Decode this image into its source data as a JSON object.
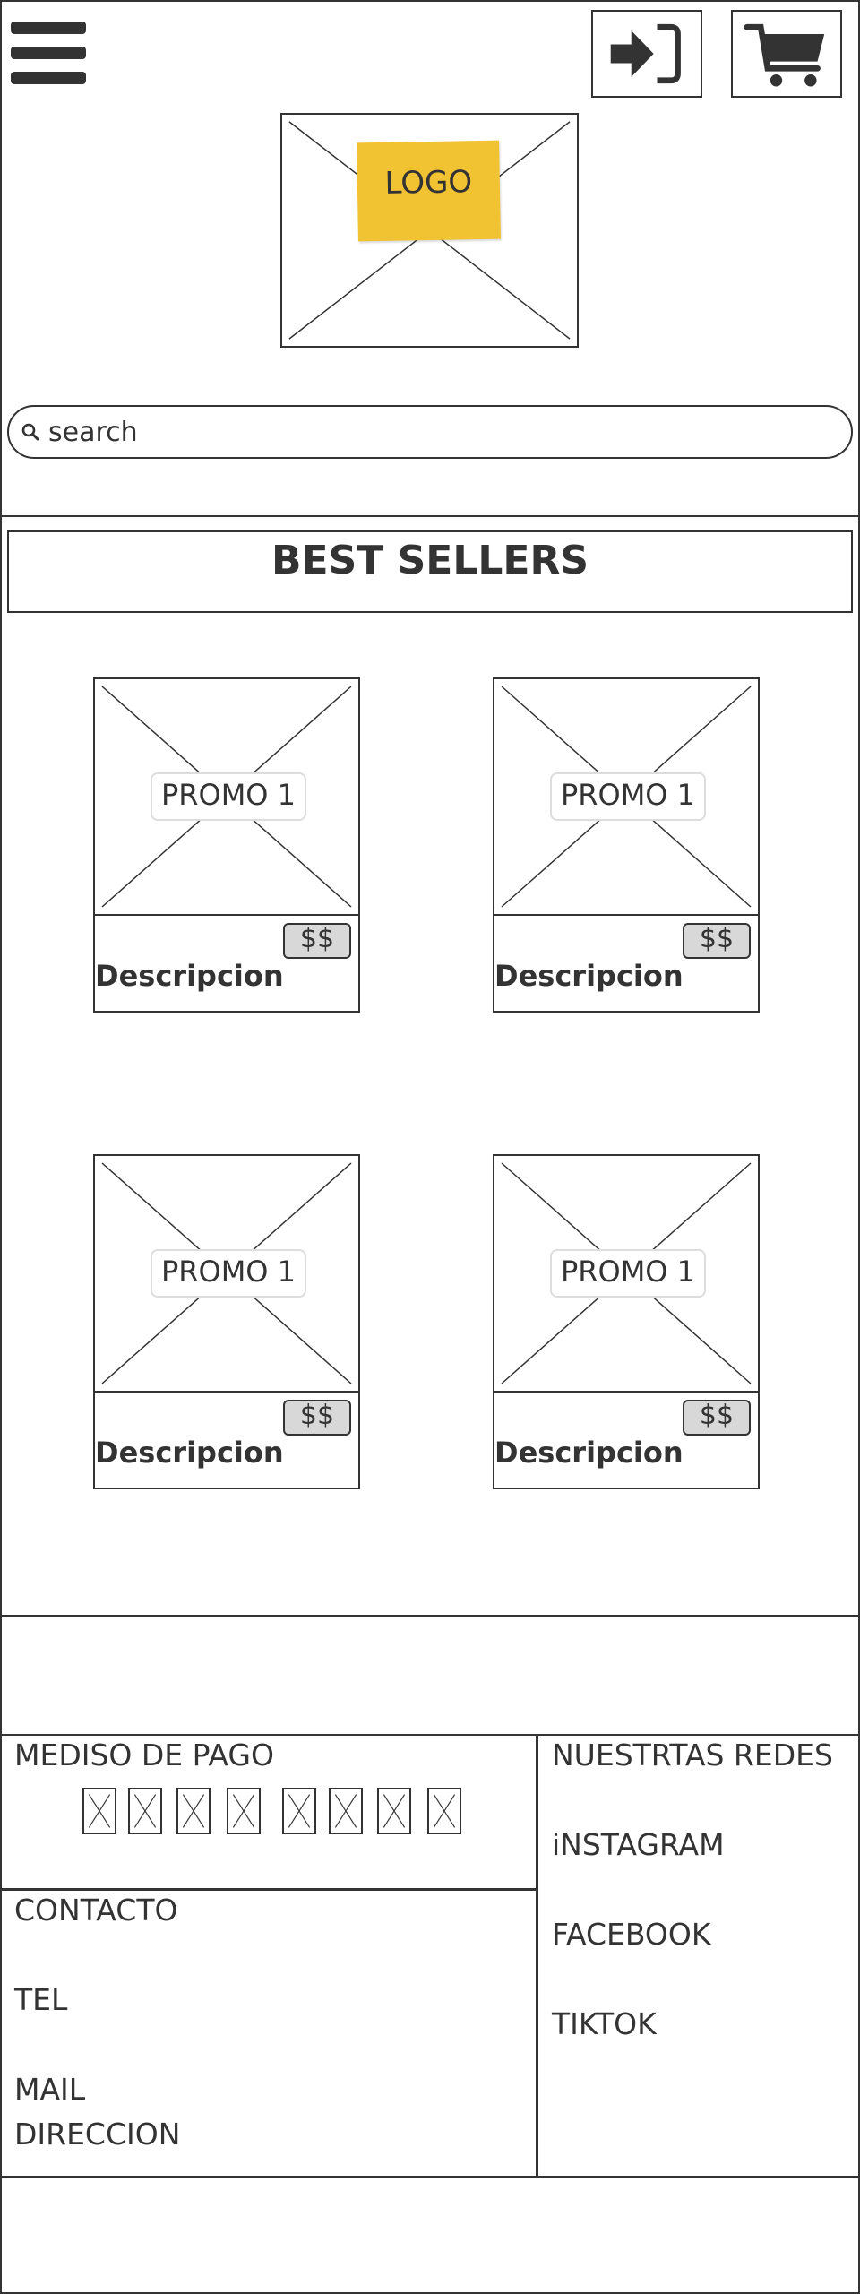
{
  "header": {
    "menu_icon": "hamburger-menu-icon",
    "login_icon": "sign-in-icon",
    "cart_icon": "shopping-cart-icon",
    "logo_text": "LOGO"
  },
  "search": {
    "placeholder": "search",
    "icon": "search-icon"
  },
  "best_sellers": {
    "title": "BEST SELLERS",
    "products": [
      {
        "promo": "PROMO 1",
        "price": "$$",
        "description": "Descripcion"
      },
      {
        "promo": "PROMO 1",
        "price": "$$",
        "description": "Descripcion"
      },
      {
        "promo": "PROMO 1",
        "price": "$$",
        "description": "Descripcion"
      },
      {
        "promo": "PROMO 1",
        "price": "$$",
        "description": "Descripcion"
      }
    ]
  },
  "footer": {
    "payment": {
      "title": "MEDISO DE PAGO"
    },
    "contact": {
      "title": "CONTACTO",
      "tel": "TEL",
      "mail": "MAIL",
      "address": "DIRECCION"
    },
    "social": {
      "title": "NUESTRTAS REDES",
      "instagram": "iNSTAGRAM",
      "facebook": "FACEBOOK",
      "tiktok": "TIKTOK"
    }
  },
  "colors": {
    "ink": "#333333",
    "sticky_note": "#f1c232",
    "price_tag": "#d8d8d8",
    "background": "#ffffff"
  }
}
